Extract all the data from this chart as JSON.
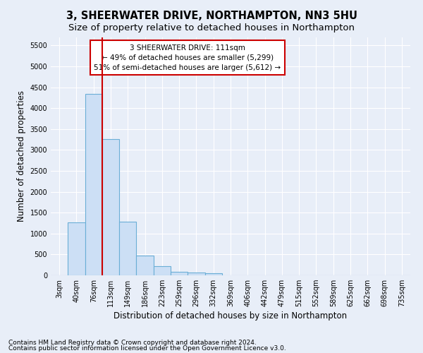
{
  "title": "3, SHEERWATER DRIVE, NORTHAMPTON, NN3 5HU",
  "subtitle": "Size of property relative to detached houses in Northampton",
  "xlabel": "Distribution of detached houses by size in Northampton",
  "ylabel": "Number of detached properties",
  "footer_line1": "Contains HM Land Registry data © Crown copyright and database right 2024.",
  "footer_line2": "Contains public sector information licensed under the Open Government Licence v3.0.",
  "bin_labels": [
    "3sqm",
    "40sqm",
    "76sqm",
    "113sqm",
    "149sqm",
    "186sqm",
    "223sqm",
    "259sqm",
    "296sqm",
    "332sqm",
    "369sqm",
    "406sqm",
    "442sqm",
    "479sqm",
    "515sqm",
    "552sqm",
    "589sqm",
    "625sqm",
    "662sqm",
    "698sqm",
    "735sqm"
  ],
  "bar_values": [
    0,
    1260,
    4340,
    3260,
    1280,
    480,
    215,
    85,
    75,
    55,
    0,
    0,
    0,
    0,
    0,
    0,
    0,
    0,
    0,
    0,
    0
  ],
  "bar_color": "#ccdff5",
  "bar_edge_color": "#6aaed6",
  "bar_edge_width": 0.8,
  "property_line_index": 3,
  "property_line_color": "#cc0000",
  "annotation_line1": "3 SHEERWATER DRIVE: 111sqm",
  "annotation_line2": "← 49% of detached houses are smaller (5,299)",
  "annotation_line3": "51% of semi-detached houses are larger (5,612) →",
  "annotation_box_color": "#ffffff",
  "annotation_box_edge_color": "#cc0000",
  "ylim": [
    0,
    5700
  ],
  "yticks": [
    0,
    500,
    1000,
    1500,
    2000,
    2500,
    3000,
    3500,
    4000,
    4500,
    5000,
    5500
  ],
  "bg_color": "#e8eef8",
  "plot_bg_color": "#e8eef8",
  "grid_color": "#ffffff",
  "title_fontsize": 10.5,
  "subtitle_fontsize": 9.5,
  "axis_label_fontsize": 8.5,
  "tick_fontsize": 7,
  "annotation_fontsize": 7.5,
  "footer_fontsize": 6.5
}
